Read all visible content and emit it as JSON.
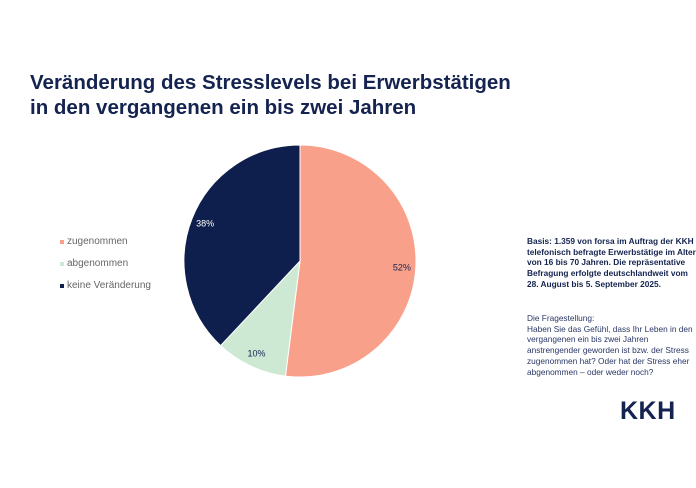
{
  "title_lines": [
    "Veränderung des Stresslevels bei Erwerbstätigen",
    "in den vergangenen ein bis zwei Jahren"
  ],
  "chart_data": {
    "type": "pie",
    "title": "Veränderung des Stresslevels bei Erwerbstätigen in den vergangenen ein bis zwei Jahren",
    "categories": [
      "zugenommen",
      "abgenommen",
      "keine Veränderung"
    ],
    "values": [
      52,
      10,
      38
    ],
    "data_labels": [
      "52%",
      "10%",
      "38%"
    ],
    "colors": [
      "#F9A08B",
      "#CDE8D3",
      "#0E1F4D"
    ],
    "legend_position": "left"
  },
  "basis": "Basis: 1.359 von forsa im Auftrag der KKH telefonisch befragte Erwerbstätige im Alter von 16 bis 70 Jahren. Die repräsentative Befragung erfolgte deutschlandweit vom 28. August bis 5. September 2025.",
  "fragestellung": [
    "Die Fragestellung:",
    "Haben Sie das Gefühl, dass Ihr Leben in den vergangenen ein bis zwei Jahren anstrengender geworden ist bzw. der Stress zugenommen hat? Oder hat der Stress eher abgenommen – oder weder noch?"
  ],
  "logo": "KKH"
}
